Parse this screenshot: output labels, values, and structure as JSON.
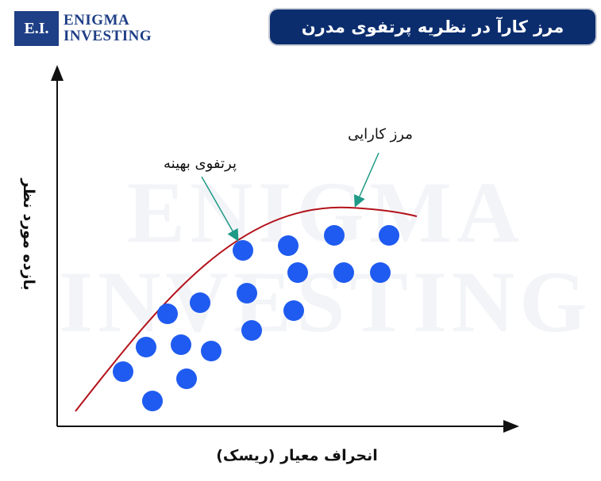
{
  "logo": {
    "badge": "E.I.",
    "line1": "Enigma",
    "line2": "Investing"
  },
  "title": "مرز کارآ در نظریه پرتفوی مدرن",
  "watermark": {
    "line1": "ENIGMA",
    "line2": "INVESTING"
  },
  "labels": {
    "frontier": "مرز کارایی",
    "optimal": "پرتفوی بهینه",
    "x_axis": "انحراف معیار (ریسک)",
    "y_axis": "بازده مورد نظر"
  },
  "colors": {
    "navy": "#0b2d6e",
    "dot": "#1f5bf0",
    "curve": "#b3121a",
    "pointer": "#1e9a86",
    "axis": "#111111"
  }
}
